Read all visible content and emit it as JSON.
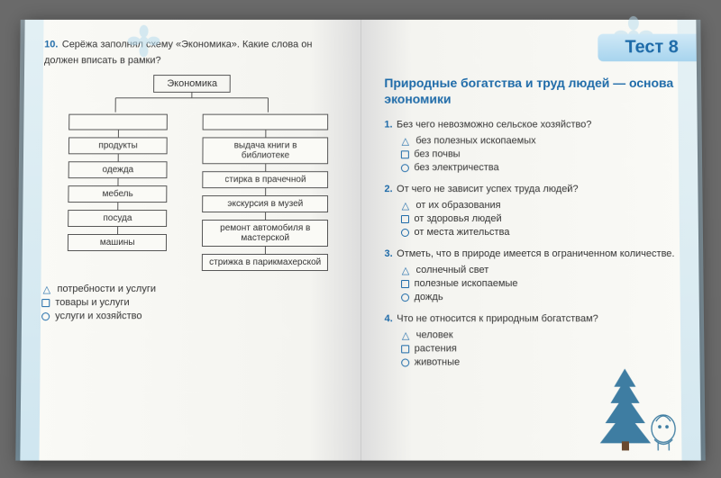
{
  "colors": {
    "accent": "#1d6aa8",
    "box_border": "#555555",
    "text": "#333333",
    "banner_top": "#cfe8f6",
    "banner_bot": "#a7d4ee",
    "spruce": "#3e7da2"
  },
  "left_page": {
    "q_number": "10.",
    "q_text": "Серёжа заполнял схему «Экономика». Какие слова он должен вписать в рамки?",
    "diagram": {
      "root": "Экономика",
      "left_items": [
        "продукты",
        "одежда",
        "мебель",
        "посуда",
        "машины"
      ],
      "right_items": [
        "выдача книги в библиотеке",
        "стирка в прачечной",
        "экскурсия в музей",
        "ремонт автомобиля в мастерской",
        "стрижка в парикмахерской"
      ]
    },
    "answers": [
      {
        "marker": "tri",
        "text": "потребности и услуги"
      },
      {
        "marker": "sq",
        "text": "товары и услуги"
      },
      {
        "marker": "circ",
        "text": "услуги и хозяйство"
      }
    ]
  },
  "right_page": {
    "banner": "Тест  8",
    "title": "Природные богатства и труд людей — основа экономики",
    "questions": [
      {
        "n": "1.",
        "text": "Без чего невозможно сельское хозяйство?",
        "opts": [
          {
            "marker": "tri",
            "text": "без полезных ископаемых"
          },
          {
            "marker": "sq",
            "text": "без почвы"
          },
          {
            "marker": "circ",
            "text": "без электричества"
          }
        ]
      },
      {
        "n": "2.",
        "text": "От чего не зависит успех труда людей?",
        "opts": [
          {
            "marker": "tri",
            "text": "от их образования"
          },
          {
            "marker": "sq",
            "text": "от здоровья людей"
          },
          {
            "marker": "circ",
            "text": "от места жительства"
          }
        ]
      },
      {
        "n": "3.",
        "text": "Отметь, что в природе имеется в ограниченном количестве.",
        "opts": [
          {
            "marker": "tri",
            "text": "солнечный свет"
          },
          {
            "marker": "sq",
            "text": "полезные ископаемые"
          },
          {
            "marker": "circ",
            "text": "дождь"
          }
        ]
      },
      {
        "n": "4.",
        "text": "Что не относится к природным богатствам?",
        "opts": [
          {
            "marker": "tri",
            "text": "человек"
          },
          {
            "marker": "sq",
            "text": "растения"
          },
          {
            "marker": "circ",
            "text": "животные"
          }
        ]
      }
    ]
  }
}
